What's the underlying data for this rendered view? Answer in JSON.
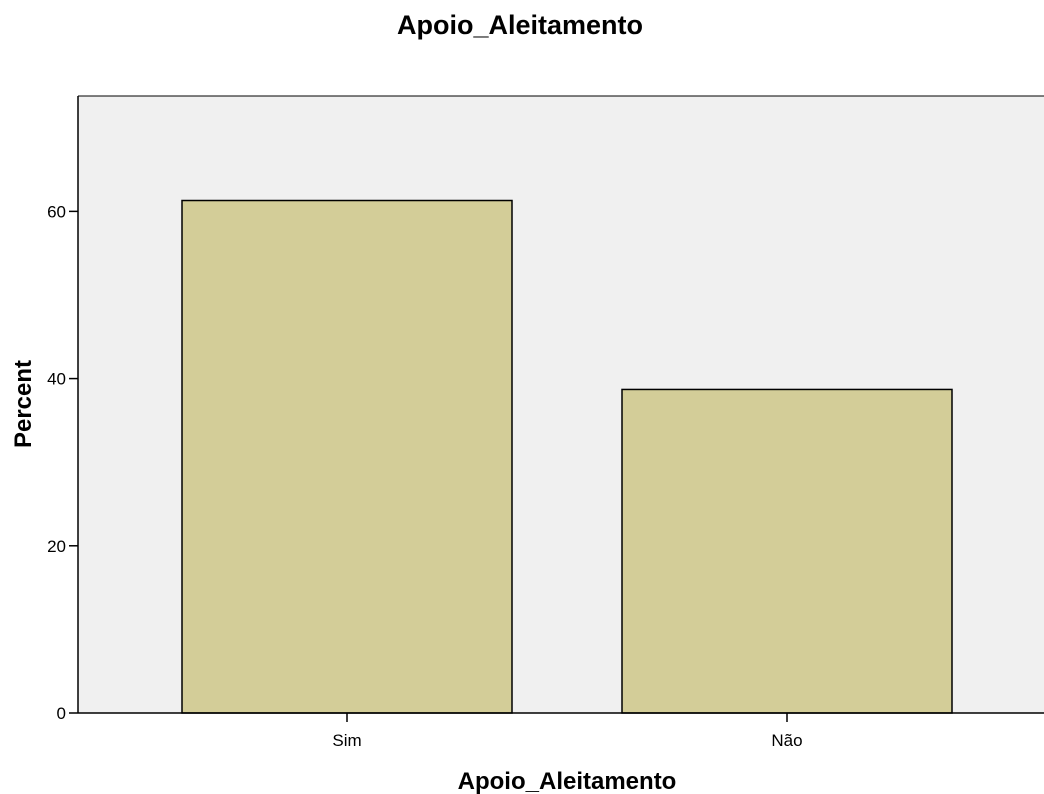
{
  "chart_data": {
    "type": "bar",
    "title": "Apoio_Aleitamento",
    "xlabel": "Apoio_Aleitamento",
    "ylabel": "Percent",
    "categories": [
      "Sim",
      "Não"
    ],
    "values": [
      61.3,
      38.7
    ],
    "ylim": [
      0,
      73.8
    ],
    "yticks": [
      "0",
      "20",
      "40",
      "60"
    ],
    "grid": false,
    "legend": "none",
    "colors": {
      "bar_fill": "#d3cd98",
      "bar_stroke": "#000000",
      "plot_background": "#f0f0f0",
      "axis": "#000000"
    }
  }
}
